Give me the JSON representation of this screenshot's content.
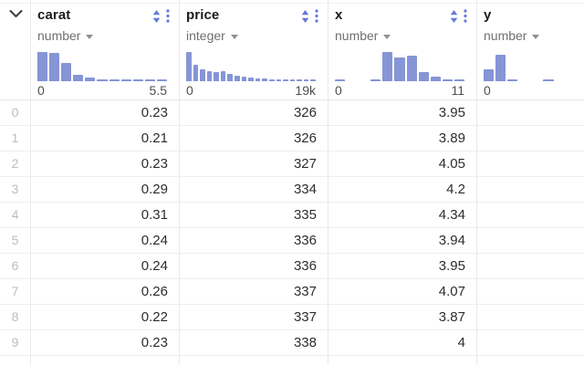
{
  "colors": {
    "accent_icon": "#6478db",
    "histogram_bar": "#8595d6",
    "separator": "#e9eaed"
  },
  "table": {
    "corner": {
      "icon": "chevron-down"
    },
    "columns": [
      {
        "name": "carat",
        "type": "number",
        "icons": [
          "sort-icon",
          "kebab-menu-icon",
          "caret-down-icon"
        ],
        "hist": {
          "min_label": "0",
          "max_label": "5.5",
          "bars": [
            1,
            0.96,
            0.63,
            0.22,
            0.13,
            0.05,
            0.05,
            0.05,
            0.05,
            0.05,
            0.05
          ]
        }
      },
      {
        "name": "price",
        "type": "integer",
        "icons": [
          "sort-icon",
          "kebab-menu-icon",
          "caret-down-icon"
        ],
        "hist": {
          "min_label": "0",
          "max_label": "19k",
          "bars": [
            1,
            0.56,
            0.42,
            0.34,
            0.3,
            0.33,
            0.26,
            0.2,
            0.15,
            0.12,
            0.1,
            0.08,
            0.07,
            0.06,
            0.06,
            0.05,
            0.05,
            0.04,
            0.04
          ]
        }
      },
      {
        "name": "x",
        "type": "number",
        "icons": [
          "sort-icon",
          "kebab-menu-icon",
          "caret-down-icon"
        ],
        "hist": {
          "min_label": "0",
          "max_label": "11",
          "bars": [
            0.05,
            0,
            0,
            0.05,
            1,
            0.8,
            0.86,
            0.32,
            0.17,
            0.05,
            0.05
          ]
        }
      },
      {
        "name": "y",
        "type": "number",
        "icons": [
          "caret-down-icon"
        ],
        "hist": {
          "min_label": "0",
          "max_label": "",
          "bars": [
            0.42,
            0.92,
            0.05,
            0,
            0,
            0.05,
            0,
            0,
            0,
            0,
            0
          ]
        }
      }
    ],
    "rows": [
      {
        "index": "0",
        "values": [
          "0.23",
          "326",
          "3.95",
          ""
        ]
      },
      {
        "index": "1",
        "values": [
          "0.21",
          "326",
          "3.89",
          ""
        ]
      },
      {
        "index": "2",
        "values": [
          "0.23",
          "327",
          "4.05",
          ""
        ]
      },
      {
        "index": "3",
        "values": [
          "0.29",
          "334",
          "4.2",
          ""
        ]
      },
      {
        "index": "4",
        "values": [
          "0.31",
          "335",
          "4.34",
          ""
        ]
      },
      {
        "index": "5",
        "values": [
          "0.24",
          "336",
          "3.94",
          ""
        ]
      },
      {
        "index": "6",
        "values": [
          "0.24",
          "336",
          "3.95",
          ""
        ]
      },
      {
        "index": "7",
        "values": [
          "0.26",
          "337",
          "4.07",
          ""
        ]
      },
      {
        "index": "8",
        "values": [
          "0.22",
          "337",
          "3.87",
          ""
        ]
      },
      {
        "index": "9",
        "values": [
          "0.23",
          "338",
          "4",
          ""
        ]
      }
    ]
  }
}
